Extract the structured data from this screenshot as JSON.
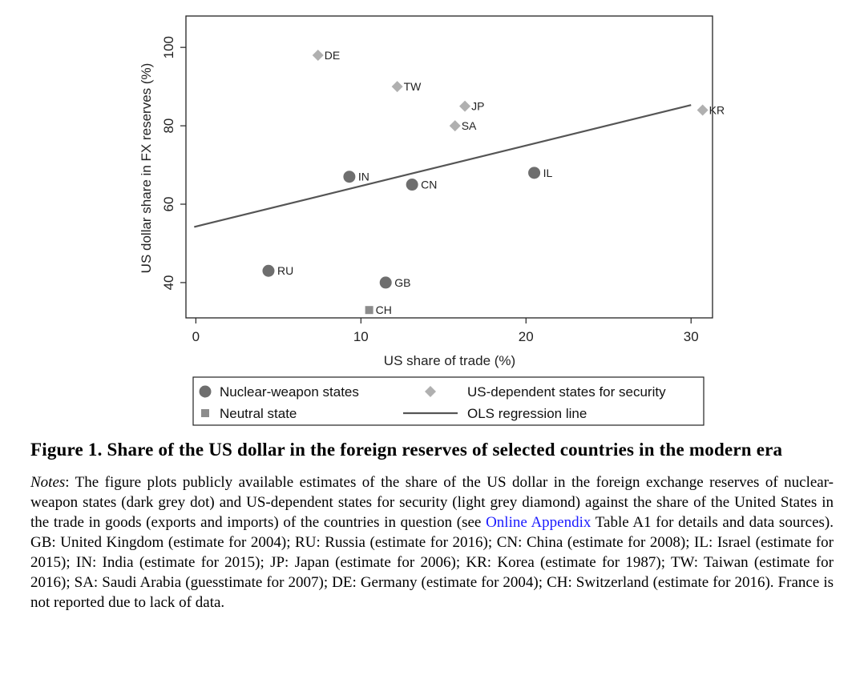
{
  "chart_data": {
    "type": "scatter",
    "xlabel": "US share of trade (%)",
    "ylabel": "US dollar share in FX reserves (%)",
    "xlim": [
      -0.6,
      31.3
    ],
    "ylim": [
      31.0,
      108.0
    ],
    "xticks": [
      0,
      10,
      20,
      30
    ],
    "yticks": [
      40,
      60,
      80,
      100
    ],
    "grid": false,
    "colors": {
      "dark": "#6e6e6e",
      "light": "#b0b0b0",
      "neutral": "#8c8c8c",
      "line": "#555555"
    },
    "series": [
      {
        "name": "Nuclear-weapon states",
        "marker": "circle",
        "points": [
          {
            "label": "RU",
            "x": 4.4,
            "y": 43
          },
          {
            "label": "IN",
            "x": 9.3,
            "y": 67
          },
          {
            "label": "GB",
            "x": 11.5,
            "y": 40
          },
          {
            "label": "CN",
            "x": 13.1,
            "y": 65
          },
          {
            "label": "IL",
            "x": 20.5,
            "y": 68
          }
        ]
      },
      {
        "name": "US-dependent states for security",
        "marker": "diamond",
        "points": [
          {
            "label": "DE",
            "x": 7.4,
            "y": 98
          },
          {
            "label": "TW",
            "x": 12.2,
            "y": 90
          },
          {
            "label": "JP",
            "x": 16.3,
            "y": 85
          },
          {
            "label": "SA",
            "x": 15.7,
            "y": 80
          },
          {
            "label": "KR",
            "x": 30.7,
            "y": 84
          }
        ]
      },
      {
        "name": "Neutral state",
        "marker": "square",
        "points": [
          {
            "label": "CH",
            "x": 10.5,
            "y": 33
          }
        ]
      }
    ],
    "regression_line": {
      "name": "OLS regression line",
      "x": [
        -0.1,
        30.0
      ],
      "y": [
        54.2,
        85.3
      ]
    },
    "legend": {
      "placement": "bottom",
      "entries": [
        {
          "label": "Nuclear-weapon states",
          "marker": "circle"
        },
        {
          "label": "US-dependent states for security",
          "marker": "diamond"
        },
        {
          "label": "Neutral state",
          "marker": "square"
        },
        {
          "label": "OLS regression line",
          "marker": "line"
        }
      ]
    }
  },
  "caption": {
    "title": "Figure 1. Share of the US dollar in the foreign reserves of selected countries in the modern era",
    "notes_label": "Notes",
    "notes_part1": ": The figure plots publicly available estimates of the share of the US dollar in the foreign exchange reserves of nuclear-weapon states (dark grey dot) and US-dependent states for security (light grey diamond) against the share of the United States in the trade in goods (exports and imports) of the countries in question (see ",
    "notes_link": "Online Appendix",
    "notes_part2": " Table A1 for details and data sources). GB: United Kingdom (estimate for 2004); RU: Russia (estimate for 2016); CN: China (estimate for 2008); IL: Israel (estimate for 2015); IN: India (estimate for 2015); JP: Japan (estimate for 2006); KR: Korea (estimate for 1987); TW: Taiwan (estimate for 2016); SA: Saudi Arabia (guesstimate for 2007); DE: Germany (estimate for 2004); CH: Switzerland (estimate for 2016). France is not reported due to lack of data."
  }
}
